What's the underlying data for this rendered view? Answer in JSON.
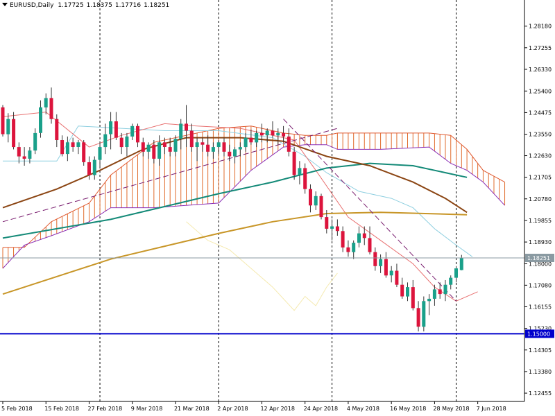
{
  "header": {
    "symbol_label": "EURUSD,Daily",
    "open": "1.17725",
    "high": "1.18375",
    "low": "1.17716",
    "close": "1.18251"
  },
  "price_tags": {
    "current": "1.18251",
    "level": "1.15000"
  },
  "colors": {
    "bull": "#1aa08a",
    "bear": "#dc143c",
    "wick": "#333333",
    "ma_long": "#c89628",
    "ma_mid": "#148a78",
    "ma_short": "#8b4513",
    "cloud_hatch": "#e06a2a",
    "cloud_edge_a": "#e05a30",
    "cloud_edge_b": "#8a2db5",
    "tenkan": "#e87070",
    "kijun": "#8ecfe0",
    "chikou": "#f5eab0",
    "level_line": "#0000cc",
    "trend_line": "#7a1f70",
    "price_line": "#8a9aa2",
    "grid_v": "#000000"
  },
  "chart_data": {
    "type": "candlestick",
    "symbol": "EURUSD",
    "timeframe": "Daily",
    "ylim": [
      1.121,
      1.293
    ],
    "y_ticks": [
      "1.28180",
      "1.27255",
      "1.26330",
      "1.25400",
      "1.24475",
      "1.23550",
      "1.22630",
      "1.21705",
      "1.20780",
      "1.19855",
      "1.18930",
      "1.18000",
      "1.17080",
      "1.16155",
      "1.15230",
      "1.14305",
      "1.13380",
      "1.12455"
    ],
    "x_ticks": [
      {
        "label": "5 Feb 2018",
        "bar": 0
      },
      {
        "label": "15 Feb 2018",
        "bar": 8
      },
      {
        "label": "27 Feb 2018",
        "bar": 16
      },
      {
        "label": "9 Mar 2018",
        "bar": 24
      },
      {
        "label": "21 Mar 2018",
        "bar": 32
      },
      {
        "label": "2 Apr 2018",
        "bar": 40
      },
      {
        "label": "12 Apr 2018",
        "bar": 48
      },
      {
        "label": "24 Apr 2018",
        "bar": 56
      },
      {
        "label": "4 May 2018",
        "bar": 64
      },
      {
        "label": "16 May 2018",
        "bar": 72
      },
      {
        "label": "28 May 2018",
        "bar": 80
      },
      {
        "label": "7 Jun 2018",
        "bar": 88
      }
    ],
    "separators": [
      18,
      40,
      61,
      84
    ],
    "candles": [
      [
        1.247,
        1.248,
        1.2345,
        1.2355
      ],
      [
        1.2355,
        1.2445,
        1.232,
        1.242
      ],
      [
        1.242,
        1.245,
        1.229,
        1.23
      ],
      [
        1.23,
        1.232,
        1.223,
        1.226
      ],
      [
        1.226,
        1.23,
        1.222,
        1.225
      ],
      [
        1.225,
        1.23,
        1.223,
        1.2285
      ],
      [
        1.2285,
        1.238,
        1.227,
        1.236
      ],
      [
        1.236,
        1.25,
        1.234,
        1.247
      ],
      [
        1.247,
        1.253,
        1.244,
        1.251
      ],
      [
        1.251,
        1.2555,
        1.24,
        1.242
      ],
      [
        1.242,
        1.244,
        1.23,
        1.233
      ],
      [
        1.233,
        1.235,
        1.226,
        1.227
      ],
      [
        1.227,
        1.2345,
        1.224,
        1.232
      ],
      [
        1.232,
        1.234,
        1.228,
        1.23
      ],
      [
        1.23,
        1.233,
        1.227,
        1.232
      ],
      [
        1.232,
        1.233,
        1.222,
        1.2235
      ],
      [
        1.2235,
        1.226,
        1.216,
        1.218
      ],
      [
        1.218,
        1.226,
        1.216,
        1.2245
      ],
      [
        1.2245,
        1.232,
        1.221,
        1.23
      ],
      [
        1.23,
        1.24,
        1.227,
        1.2355
      ],
      [
        1.2355,
        1.245,
        1.229,
        1.241
      ],
      [
        1.241,
        1.245,
        1.233,
        1.234
      ],
      [
        1.234,
        1.236,
        1.227,
        1.23
      ],
      [
        1.23,
        1.236,
        1.226,
        1.2345
      ],
      [
        1.2345,
        1.24,
        1.233,
        1.239
      ],
      [
        1.239,
        1.24,
        1.23,
        1.232
      ],
      [
        1.232,
        1.234,
        1.226,
        1.228
      ],
      [
        1.228,
        1.232,
        1.225,
        1.231
      ],
      [
        1.231,
        1.233,
        1.223,
        1.225
      ],
      [
        1.225,
        1.235,
        1.222,
        1.232
      ],
      [
        1.232,
        1.234,
        1.227,
        1.23
      ],
      [
        1.23,
        1.234,
        1.226,
        1.228
      ],
      [
        1.228,
        1.235,
        1.226,
        1.2335
      ],
      [
        1.2335,
        1.242,
        1.229,
        1.24
      ],
      [
        1.24,
        1.248,
        1.23,
        1.237
      ],
      [
        1.237,
        1.24,
        1.228,
        1.23
      ],
      [
        1.23,
        1.234,
        1.224,
        1.232
      ],
      [
        1.232,
        1.234,
        1.228,
        1.231
      ],
      [
        1.231,
        1.235,
        1.226,
        1.228
      ],
      [
        1.228,
        1.232,
        1.225,
        1.23
      ],
      [
        1.23,
        1.233,
        1.227,
        1.232
      ],
      [
        1.232,
        1.234,
        1.226,
        1.228
      ],
      [
        1.228,
        1.231,
        1.224,
        1.226
      ],
      [
        1.226,
        1.23,
        1.223,
        1.229
      ],
      [
        1.229,
        1.232,
        1.226,
        1.23
      ],
      [
        1.23,
        1.236,
        1.228,
        1.234
      ],
      [
        1.234,
        1.2375,
        1.231,
        1.232
      ],
      [
        1.232,
        1.237,
        1.23,
        1.236
      ],
      [
        1.236,
        1.24,
        1.232,
        1.235
      ],
      [
        1.235,
        1.238,
        1.232,
        1.237
      ],
      [
        1.237,
        1.241,
        1.234,
        1.235
      ],
      [
        1.235,
        1.238,
        1.231,
        1.236
      ],
      [
        1.236,
        1.239,
        1.232,
        1.2345
      ],
      [
        1.2345,
        1.238,
        1.226,
        1.228
      ],
      [
        1.228,
        1.23,
        1.216,
        1.218
      ],
      [
        1.218,
        1.224,
        1.214,
        1.221
      ],
      [
        1.221,
        1.223,
        1.21,
        1.212
      ],
      [
        1.212,
        1.214,
        1.202,
        1.205
      ],
      [
        1.205,
        1.211,
        1.203,
        1.209
      ],
      [
        1.209,
        1.21,
        1.199,
        1.2
      ],
      [
        1.2,
        1.203,
        1.193,
        1.195
      ],
      [
        1.195,
        1.199,
        1.19,
        1.196
      ],
      [
        1.196,
        1.199,
        1.192,
        1.194
      ],
      [
        1.194,
        1.196,
        1.185,
        1.187
      ],
      [
        1.187,
        1.19,
        1.183,
        1.185
      ],
      [
        1.185,
        1.19,
        1.182,
        1.189
      ],
      [
        1.189,
        1.196,
        1.187,
        1.193
      ],
      [
        1.193,
        1.196,
        1.188,
        1.191
      ],
      [
        1.191,
        1.196,
        1.184,
        1.185
      ],
      [
        1.185,
        1.187,
        1.177,
        1.179
      ],
      [
        1.179,
        1.184,
        1.176,
        1.182
      ],
      [
        1.182,
        1.185,
        1.174,
        1.175
      ],
      [
        1.175,
        1.179,
        1.172,
        1.177
      ],
      [
        1.177,
        1.18,
        1.17,
        1.171
      ],
      [
        1.171,
        1.174,
        1.165,
        1.166
      ],
      [
        1.166,
        1.172,
        1.164,
        1.17
      ],
      [
        1.17,
        1.173,
        1.16,
        1.161
      ],
      [
        1.161,
        1.164,
        1.151,
        1.153
      ],
      [
        1.153,
        1.166,
        1.151,
        1.164
      ],
      [
        1.164,
        1.167,
        1.158,
        1.165
      ],
      [
        1.165,
        1.171,
        1.162,
        1.169
      ],
      [
        1.169,
        1.172,
        1.165,
        1.167
      ],
      [
        1.167,
        1.173,
        1.164,
        1.171
      ],
      [
        1.171,
        1.175,
        1.169,
        1.174
      ],
      [
        1.174,
        1.179,
        1.172,
        1.178
      ],
      [
        1.1773,
        1.1838,
        1.1772,
        1.1825
      ]
    ],
    "ma_long": [
      [
        0,
        1.167
      ],
      [
        20,
        1.182
      ],
      [
        40,
        1.193
      ],
      [
        50,
        1.198
      ],
      [
        60,
        1.2015
      ],
      [
        70,
        1.202
      ],
      [
        86,
        1.201
      ]
    ],
    "ma_mid": [
      [
        0,
        1.191
      ],
      [
        20,
        1.199
      ],
      [
        40,
        1.21
      ],
      [
        50,
        1.215
      ],
      [
        60,
        1.221
      ],
      [
        68,
        1.223
      ],
      [
        76,
        1.222
      ],
      [
        86,
        1.217
      ]
    ],
    "ma_short": [
      [
        0,
        1.204
      ],
      [
        10,
        1.212
      ],
      [
        18,
        1.22
      ],
      [
        26,
        1.229
      ],
      [
        34,
        1.234
      ],
      [
        44,
        1.234
      ],
      [
        52,
        1.2325
      ],
      [
        60,
        1.226
      ],
      [
        68,
        1.222
      ],
      [
        76,
        1.215
      ],
      [
        82,
        1.208
      ],
      [
        86,
        1.202
      ]
    ],
    "cloud": [
      [
        0,
        1.187,
        1.178
      ],
      [
        4,
        1.187,
        1.188
      ],
      [
        9,
        1.198,
        1.192
      ],
      [
        16,
        1.206,
        1.198
      ],
      [
        20,
        1.218,
        1.204
      ],
      [
        28,
        1.232,
        1.204
      ],
      [
        40,
        1.238,
        1.206
      ],
      [
        46,
        1.239,
        1.22
      ],
      [
        52,
        1.236,
        1.23
      ],
      [
        56,
        1.235,
        1.231
      ],
      [
        60,
        1.235,
        1.231
      ],
      [
        62,
        1.236,
        1.229
      ],
      [
        70,
        1.236,
        1.229
      ],
      [
        79,
        1.236,
        1.23
      ],
      [
        83,
        1.235,
        1.223
      ],
      [
        86,
        1.229,
        1.22
      ],
      [
        89,
        1.22,
        1.215
      ],
      [
        93,
        1.215,
        1.205
      ]
    ],
    "tenkan": [
      [
        0,
        1.243
      ],
      [
        8,
        1.245
      ],
      [
        16,
        1.23
      ],
      [
        22,
        1.235
      ],
      [
        30,
        1.24
      ],
      [
        36,
        1.239
      ],
      [
        44,
        1.238
      ],
      [
        50,
        1.235
      ],
      [
        54,
        1.233
      ],
      [
        58,
        1.22
      ],
      [
        64,
        1.2
      ],
      [
        70,
        1.19
      ],
      [
        76,
        1.18
      ],
      [
        80,
        1.17
      ],
      [
        84,
        1.164
      ],
      [
        88,
        1.168
      ]
    ],
    "kijun": [
      [
        0,
        1.224
      ],
      [
        10,
        1.224
      ],
      [
        14,
        1.239
      ],
      [
        22,
        1.238
      ],
      [
        30,
        1.237
      ],
      [
        40,
        1.237
      ],
      [
        50,
        1.234
      ],
      [
        56,
        1.226
      ],
      [
        60,
        1.219
      ],
      [
        66,
        1.211
      ],
      [
        72,
        1.208
      ],
      [
        76,
        1.204
      ],
      [
        80,
        1.195
      ],
      [
        84,
        1.188
      ],
      [
        87,
        1.183
      ]
    ],
    "chikou": [
      [
        34,
        1.198
      ],
      [
        38,
        1.19
      ],
      [
        42,
        1.186
      ],
      [
        46,
        1.178
      ],
      [
        50,
        1.17
      ],
      [
        54,
        1.16
      ],
      [
        56,
        1.166
      ],
      [
        58,
        1.162
      ],
      [
        60,
        1.17
      ],
      [
        62,
        1.176
      ]
    ],
    "trend_lines": [
      {
        "style": "dashed",
        "from": [
          0,
          1.198
        ],
        "to": [
          62,
          1.238
        ]
      },
      {
        "style": "dashed",
        "from": [
          52,
          1.242
        ],
        "to": [
          84,
          1.164
        ]
      }
    ],
    "horizontal_lines": [
      1.1825,
      1.15
    ]
  }
}
